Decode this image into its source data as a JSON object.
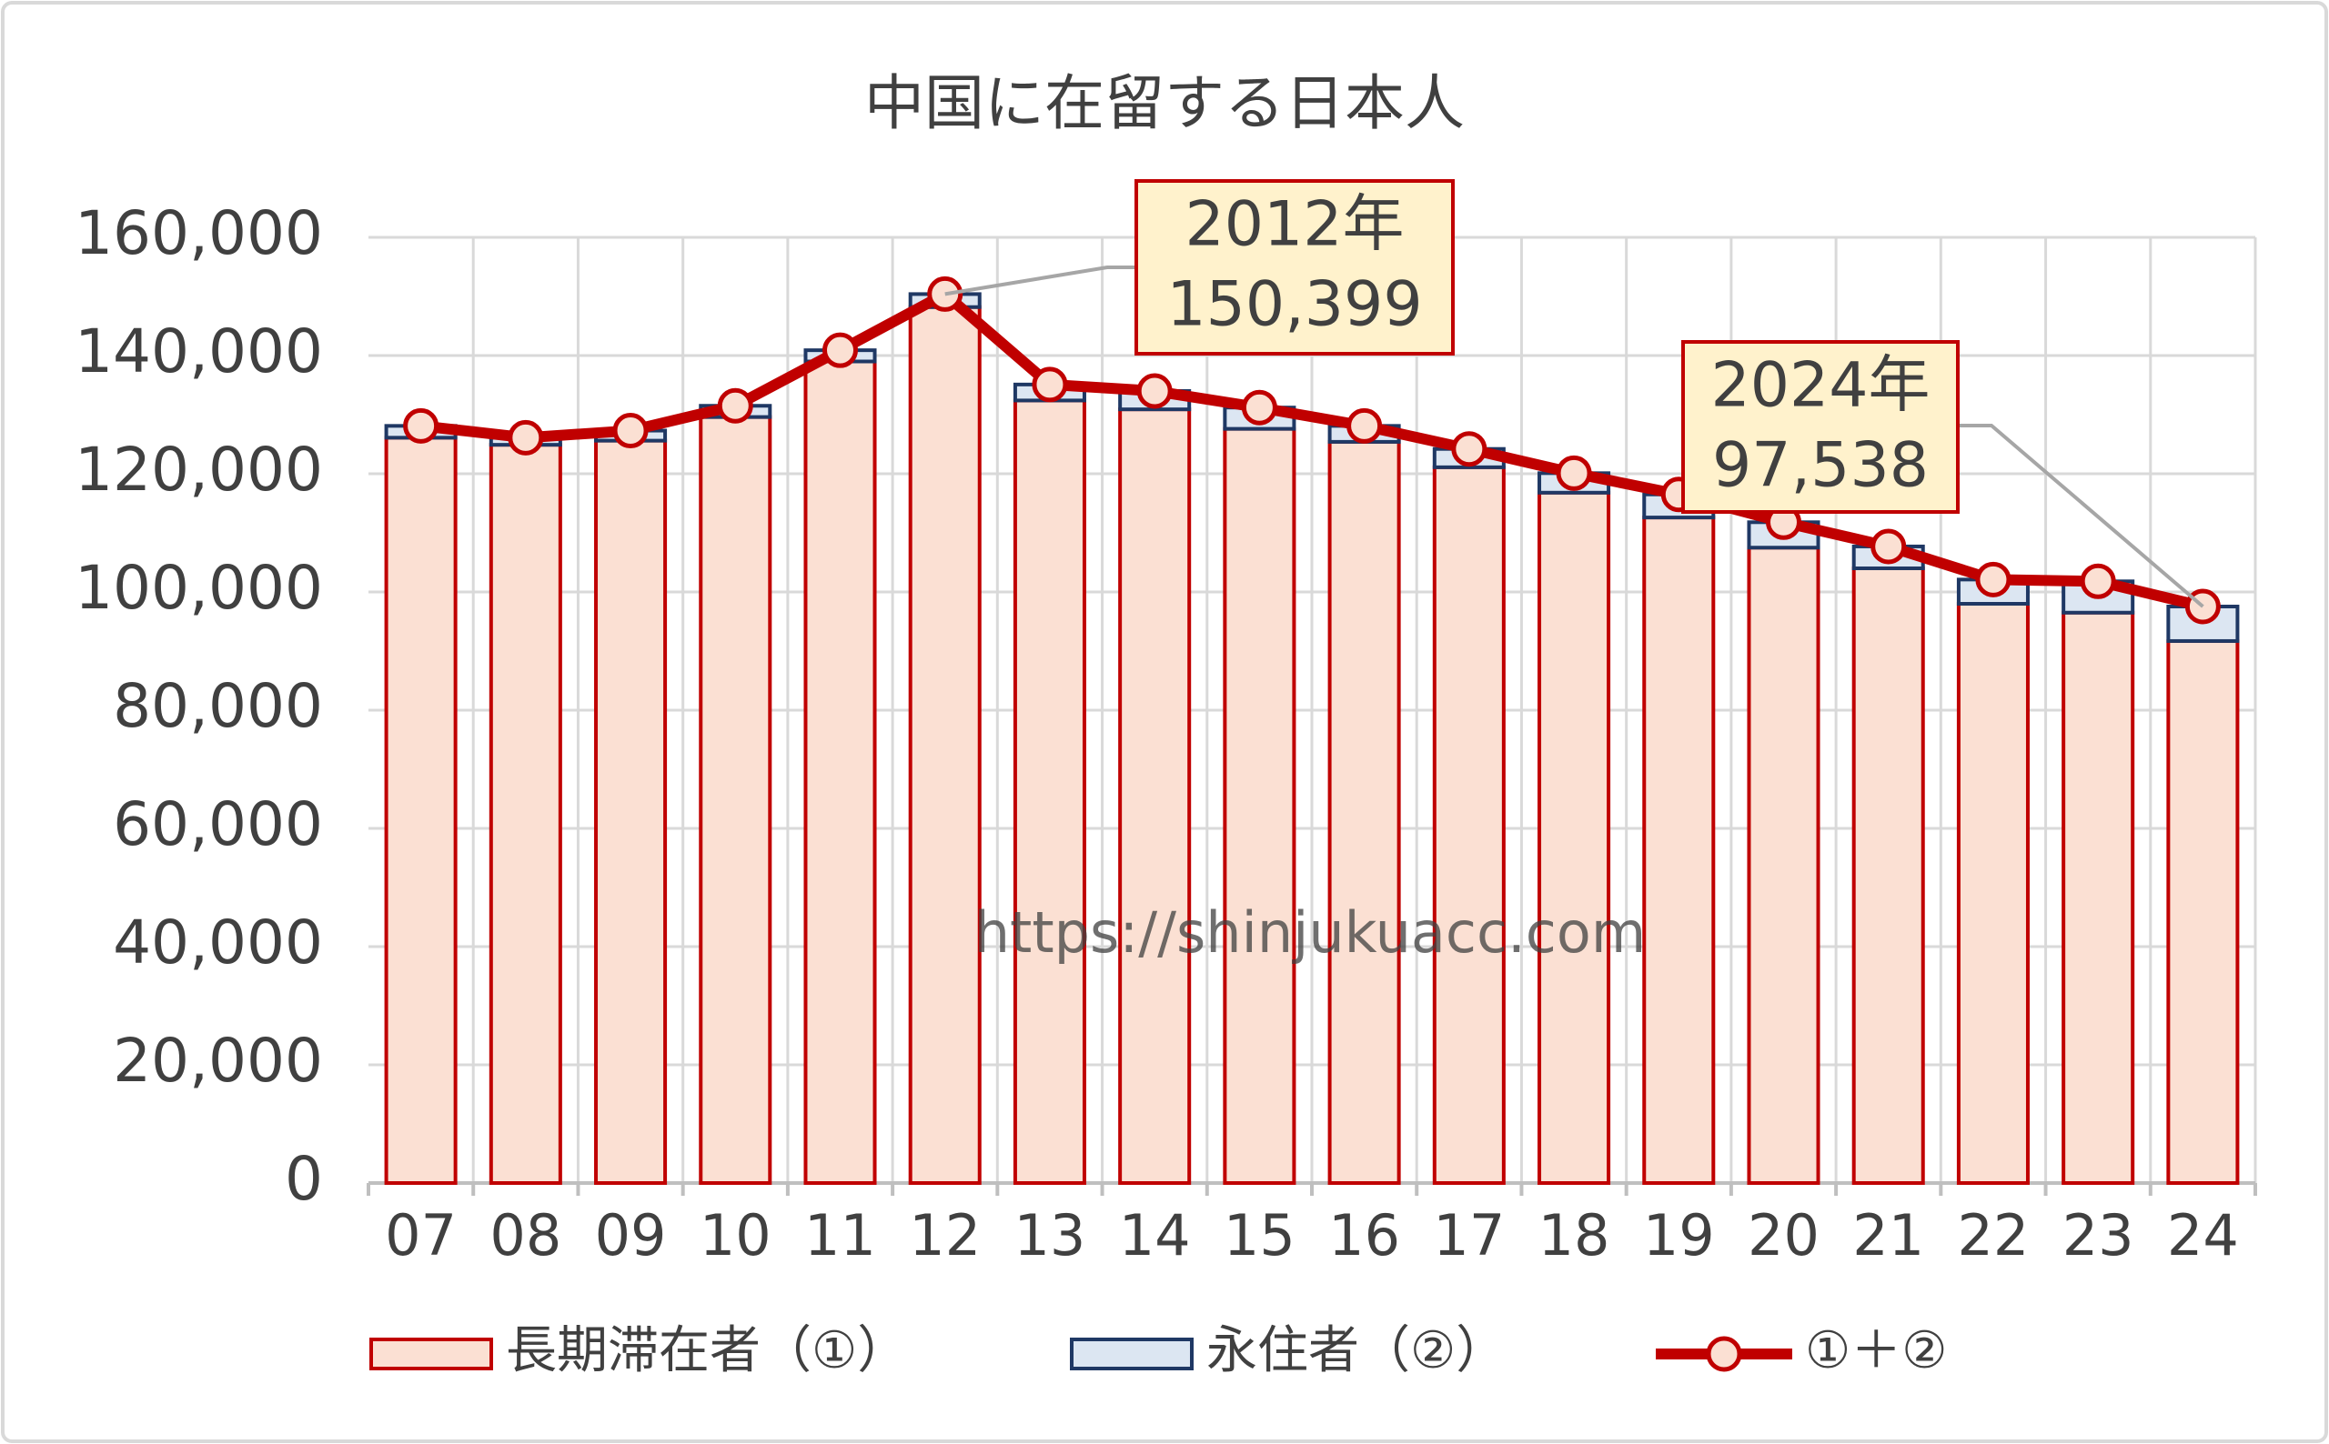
{
  "chart_data": {
    "type": "bar",
    "title": "中国に在留する日本人",
    "categories": [
      "07",
      "08",
      "09",
      "10",
      "11",
      "12",
      "13",
      "14",
      "15",
      "16",
      "17",
      "18",
      "19",
      "20",
      "21",
      "22",
      "23",
      "24"
    ],
    "series": [
      {
        "name": "長期滞在者（①）",
        "type": "bar",
        "color": "#fbe0d3",
        "edge": "#c00000",
        "values": [
          126100,
          124900,
          125600,
          129600,
          139000,
          148200,
          132400,
          130900,
          127600,
          125400,
          121100,
          116800,
          112600,
          107500,
          104000,
          98000,
          96500,
          91700
        ]
      },
      {
        "name": "永住者（②）",
        "type": "bar",
        "color": "#dce6f2",
        "edge": "#1f3864",
        "values": [
          2000,
          1200,
          1700,
          1900,
          1900,
          2199,
          2700,
          3100,
          3600,
          2700,
          3100,
          3300,
          3900,
          4300,
          3700,
          4100,
          5300,
          5838
        ]
      },
      {
        "name": "①＋②",
        "type": "line",
        "color": "#c00000",
        "marker_fill": "#fbe0d3",
        "values": [
          128100,
          126100,
          127300,
          131500,
          140900,
          150399,
          135100,
          134000,
          131200,
          128100,
          124200,
          120100,
          116500,
          111800,
          107700,
          102100,
          101800,
          97538
        ]
      }
    ],
    "annotations": [
      {
        "x": "12",
        "lines": [
          "2012年",
          "150,399"
        ]
      },
      {
        "x": "24",
        "lines": [
          "2024年",
          "97,538"
        ]
      }
    ],
    "watermark": "https://shinjukuacc.com",
    "ylim": [
      0,
      160000
    ],
    "yticks": [
      0,
      {
        "value": 20000,
        "label": "20,000"
      },
      {
        "value": 40000,
        "label": "40,000"
      },
      {
        "value": 60000,
        "label": "60,000"
      },
      {
        "value": 80000,
        "label": "80,000"
      },
      {
        "value": 100000,
        "label": "100,000"
      },
      {
        "value": 120000,
        "label": "120,000"
      },
      {
        "value": 140000,
        "label": "140,000"
      },
      {
        "value": 160000,
        "label": "160,000"
      }
    ],
    "grid": true,
    "legend": "bottom"
  }
}
